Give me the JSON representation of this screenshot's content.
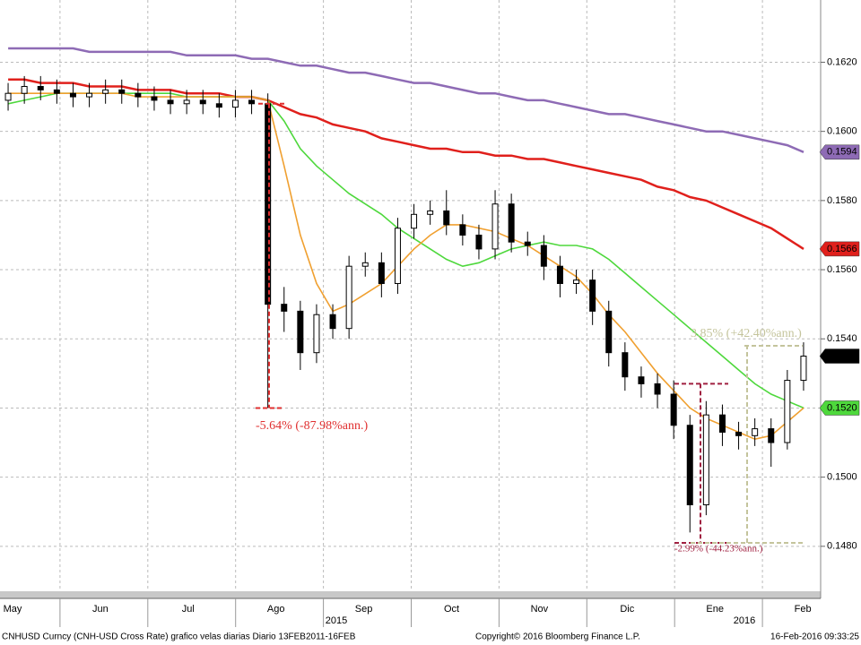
{
  "chart_data": {
    "type": "candlestick",
    "ylim": [
      0.1467,
      0.1638
    ],
    "yticks": [
      {
        "value": 0.148,
        "label": "0.1480"
      },
      {
        "value": 0.15,
        "label": "0.1500"
      },
      {
        "value": 0.152,
        "label": "0.1520"
      },
      {
        "value": 0.154,
        "label": "0.1540"
      },
      {
        "value": 0.156,
        "label": "0.1560"
      },
      {
        "value": 0.158,
        "label": "0.1580"
      },
      {
        "value": 0.16,
        "label": "0.1600"
      },
      {
        "value": 0.162,
        "label": "0.1620"
      }
    ],
    "grid": true,
    "months": [
      "May",
      "Jun",
      "Jul",
      "Ago",
      "Sep",
      "Oct",
      "Nov",
      "Dic",
      "Ene",
      "Feb"
    ],
    "years": [
      "2015",
      "2016"
    ],
    "open": [
      0.1609,
      0.1611,
      0.1613,
      0.1612,
      0.1611,
      0.161,
      0.1611,
      0.1612,
      0.1611,
      0.161,
      0.1609,
      0.1608,
      0.1609,
      0.1608,
      0.1607,
      0.1609,
      0.1608,
      0.155,
      0.1548,
      0.1536,
      0.1547,
      0.1543,
      0.1561,
      0.1562,
      0.1556,
      0.1572,
      0.1576,
      0.1577,
      0.1573,
      0.157,
      0.1566,
      0.1579,
      0.1568,
      0.1567,
      0.1561,
      0.1556,
      0.1557,
      0.1548,
      0.1536,
      0.1529,
      0.1527,
      0.1524,
      0.1515,
      0.1492,
      0.1518,
      0.1513,
      0.1512,
      0.1514,
      0.151,
      0.1528
    ],
    "high": [
      0.1614,
      0.1616,
      0.1616,
      0.1615,
      0.1614,
      0.1614,
      0.1615,
      0.1615,
      0.1614,
      0.1613,
      0.1612,
      0.1612,
      0.1612,
      0.1611,
      0.1612,
      0.1612,
      0.1611,
      0.1555,
      0.1551,
      0.155,
      0.155,
      0.1564,
      0.1565,
      0.1565,
      0.1575,
      0.1579,
      0.158,
      0.1583,
      0.1576,
      0.1573,
      0.1583,
      0.1582,
      0.1571,
      0.157,
      0.1564,
      0.156,
      0.156,
      0.1551,
      0.1539,
      0.1532,
      0.153,
      0.1528,
      0.1518,
      0.1522,
      0.1521,
      0.1516,
      0.1517,
      0.1517,
      0.1531,
      0.1539
    ],
    "low": [
      0.1606,
      0.1608,
      0.1609,
      0.1608,
      0.1607,
      0.1607,
      0.1608,
      0.1608,
      0.1607,
      0.1606,
      0.1605,
      0.1605,
      0.1605,
      0.1604,
      0.1604,
      0.1605,
      0.152,
      0.1542,
      0.1531,
      0.1533,
      0.154,
      0.154,
      0.1558,
      0.1552,
      0.1553,
      0.1569,
      0.1573,
      0.157,
      0.1567,
      0.1563,
      0.1563,
      0.1565,
      0.1564,
      0.1557,
      0.1552,
      0.1553,
      0.1544,
      0.1532,
      0.1525,
      0.1523,
      0.152,
      0.1511,
      0.1484,
      0.1489,
      0.1509,
      0.1508,
      0.1509,
      0.1503,
      0.1508,
      0.1525
    ],
    "close": [
      0.1611,
      0.1613,
      0.1612,
      0.1611,
      0.161,
      0.1611,
      0.1612,
      0.1611,
      0.161,
      0.1609,
      0.1608,
      0.1609,
      0.1608,
      0.1607,
      0.1609,
      0.1608,
      0.155,
      0.1548,
      0.1536,
      0.1547,
      0.1543,
      0.1561,
      0.1562,
      0.1556,
      0.1572,
      0.1576,
      0.1577,
      0.1573,
      0.157,
      0.1566,
      0.1579,
      0.1568,
      0.1567,
      0.1561,
      0.1556,
      0.1557,
      0.1548,
      0.1536,
      0.1529,
      0.1527,
      0.1524,
      0.1515,
      0.1492,
      0.1518,
      0.1513,
      0.1512,
      0.1514,
      0.151,
      0.1528,
      0.1535
    ],
    "lines": [
      {
        "color": "#8e6bb5",
        "values": [
          0.1624,
          0.1624,
          0.1624,
          0.1624,
          0.1624,
          0.1623,
          0.1623,
          0.1623,
          0.1623,
          0.1623,
          0.1623,
          0.1622,
          0.1622,
          0.1622,
          0.1622,
          0.1621,
          0.1621,
          0.162,
          0.1619,
          0.1619,
          0.1618,
          0.1617,
          0.1617,
          0.1616,
          0.1615,
          0.1614,
          0.1614,
          0.1613,
          0.1612,
          0.1611,
          0.1611,
          0.161,
          0.1609,
          0.1609,
          0.1608,
          0.1607,
          0.1606,
          0.1605,
          0.1605,
          0.1604,
          0.1603,
          0.1602,
          0.1601,
          0.16,
          0.16,
          0.1599,
          0.1598,
          0.1597,
          0.1596,
          0.1594
        ]
      },
      {
        "color": "#e0201c",
        "values": [
          0.1615,
          0.1615,
          0.1614,
          0.1614,
          0.1614,
          0.1613,
          0.1613,
          0.1613,
          0.1612,
          0.1612,
          0.1612,
          0.1611,
          0.1611,
          0.1611,
          0.161,
          0.161,
          0.1609,
          0.1607,
          0.1605,
          0.1604,
          0.1602,
          0.1601,
          0.16,
          0.1598,
          0.1597,
          0.1596,
          0.1595,
          0.1595,
          0.1594,
          0.1594,
          0.1593,
          0.1593,
          0.1592,
          0.1592,
          0.1591,
          0.159,
          0.1589,
          0.1588,
          0.1587,
          0.1586,
          0.1584,
          0.1583,
          0.1581,
          0.158,
          0.1578,
          0.1576,
          0.1574,
          0.1572,
          0.1569,
          0.1566
        ]
      },
      {
        "color": "#4ed83c",
        "values": [
          0.1608,
          0.1609,
          0.161,
          0.1611,
          0.1611,
          0.1611,
          0.1611,
          0.1611,
          0.1611,
          0.1611,
          0.1611,
          0.161,
          0.161,
          0.161,
          0.161,
          0.161,
          0.1609,
          0.1603,
          0.1595,
          0.159,
          0.1586,
          0.1582,
          0.1579,
          0.1576,
          0.1572,
          0.1569,
          0.1566,
          0.1563,
          0.1561,
          0.1562,
          0.1564,
          0.1566,
          0.1567,
          0.1568,
          0.1567,
          0.1567,
          0.1566,
          0.1563,
          0.1559,
          0.1555,
          0.1551,
          0.1547,
          0.1543,
          0.1539,
          0.1535,
          0.1531,
          0.1527,
          0.1524,
          0.1522,
          0.152
        ]
      },
      {
        "color": "#f0a030",
        "values": [
          0.1611,
          0.1611,
          0.1611,
          0.1611,
          0.1611,
          0.1611,
          0.1611,
          0.1611,
          0.161,
          0.161,
          0.161,
          0.161,
          0.161,
          0.161,
          0.161,
          0.161,
          0.1609,
          0.159,
          0.157,
          0.1556,
          0.1548,
          0.155,
          0.1553,
          0.1556,
          0.1561,
          0.1566,
          0.157,
          0.1573,
          0.1573,
          0.1572,
          0.1571,
          0.1569,
          0.1567,
          0.1564,
          0.1561,
          0.1558,
          0.1553,
          0.1547,
          0.1542,
          0.1536,
          0.153,
          0.1525,
          0.152,
          0.1517,
          0.1515,
          0.1513,
          0.1511,
          0.1512,
          0.1516,
          0.152
        ]
      }
    ],
    "end_tags": [
      {
        "value": 0.1594,
        "label": "0.1594",
        "color": "#8e6bb5"
      },
      {
        "value": 0.1566,
        "label": "0.1566",
        "color": "#e0201c"
      },
      {
        "value": 0.1535,
        "label": "0.1535",
        "color": "#000000"
      },
      {
        "value": 0.152,
        "label": "0.1520",
        "color": "#4ed83c"
      }
    ],
    "annotations": [
      {
        "text": "-5.64% (-87.98%ann.)",
        "from": 0.1608,
        "to": 0.152,
        "color": "#e03030"
      },
      {
        "text": "-2.99% (-44.23%ann.)",
        "from": 0.1527,
        "to": 0.1481,
        "color": "#a02040"
      },
      {
        "text": "3.85% (+42.40%ann.)",
        "from": 0.1481,
        "to": 0.1538,
        "color": "#c4c49c"
      }
    ],
    "footer": {
      "left": "CNHUSD Curncy (CNH-USD Cross Rate) grafico velas diarias  Diario 13FEB2011-16FEB",
      "center": "Copyright© 2016 Bloomberg Finance L.P.",
      "right": "16-Feb-2016 09:33:25"
    }
  }
}
